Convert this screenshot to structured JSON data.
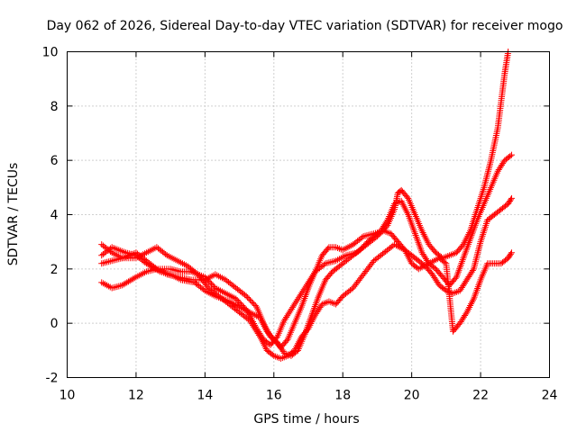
{
  "chart_data": {
    "type": "scatter",
    "title": "Day 062 of 2026, Sidereal Day-to-day VTEC variation (SDTVAR) for receiver mogo",
    "xlabel": "GPS time / hours",
    "ylabel": "SDTVAR / TECUs",
    "xlim": [
      10,
      24
    ],
    "ylim": [
      -2,
      10
    ],
    "xticks": [
      "10",
      "12",
      "14",
      "16",
      "18",
      "20",
      "22",
      "24"
    ],
    "yticks": [
      "-2",
      "0",
      "2",
      "4",
      "6",
      "8",
      "10"
    ],
    "grid": true,
    "marker": "+",
    "color": "#ff0000",
    "series": [
      {
        "name": "track-1",
        "points": [
          [
            11.0,
            2.5
          ],
          [
            11.3,
            2.8
          ],
          [
            11.7,
            2.6
          ],
          [
            12.0,
            2.5
          ],
          [
            12.3,
            2.2
          ],
          [
            12.7,
            1.9
          ],
          [
            13.0,
            1.8
          ],
          [
            13.3,
            1.6
          ],
          [
            13.7,
            1.5
          ],
          [
            14.0,
            1.2
          ],
          [
            14.3,
            1.0
          ],
          [
            14.7,
            0.8
          ],
          [
            15.0,
            0.6
          ],
          [
            15.3,
            0.4
          ],
          [
            15.6,
            0.2
          ],
          [
            15.8,
            -0.3
          ],
          [
            16.0,
            -0.6
          ],
          [
            16.2,
            -0.9
          ],
          [
            16.4,
            -0.6
          ],
          [
            16.6,
            0.0
          ],
          [
            16.8,
            0.6
          ],
          [
            17.0,
            1.3
          ],
          [
            17.2,
            1.9
          ],
          [
            17.4,
            2.5
          ],
          [
            17.6,
            2.8
          ],
          [
            17.8,
            2.8
          ],
          [
            18.0,
            2.7
          ],
          [
            18.3,
            2.9
          ],
          [
            18.6,
            3.2
          ],
          [
            18.9,
            3.3
          ],
          [
            19.2,
            3.4
          ],
          [
            19.4,
            3.3
          ],
          [
            19.6,
            3.0
          ],
          [
            19.8,
            2.7
          ],
          [
            20.0,
            2.5
          ],
          [
            20.2,
            2.3
          ],
          [
            20.4,
            2.1
          ],
          [
            20.6,
            1.8
          ],
          [
            20.8,
            1.4
          ],
          [
            21.0,
            1.2
          ],
          [
            21.2,
            1.1
          ],
          [
            21.4,
            1.2
          ],
          [
            21.6,
            1.6
          ],
          [
            21.8,
            2.0
          ],
          [
            22.0,
            3.0
          ],
          [
            22.2,
            3.8
          ],
          [
            22.4,
            4.0
          ],
          [
            22.6,
            4.2
          ],
          [
            22.8,
            4.4
          ],
          [
            22.9,
            4.6
          ]
        ]
      },
      {
        "name": "track-2",
        "points": [
          [
            11.0,
            1.5
          ],
          [
            11.3,
            1.3
          ],
          [
            11.6,
            1.4
          ],
          [
            12.0,
            1.7
          ],
          [
            12.3,
            1.9
          ],
          [
            12.6,
            2.0
          ],
          [
            13.0,
            2.0
          ],
          [
            13.3,
            1.9
          ],
          [
            13.6,
            1.9
          ],
          [
            14.0,
            1.7
          ],
          [
            14.3,
            1.3
          ],
          [
            14.6,
            1.1
          ],
          [
            14.9,
            0.9
          ],
          [
            15.2,
            0.5
          ],
          [
            15.5,
            -0.2
          ],
          [
            15.7,
            -0.6
          ],
          [
            15.9,
            -0.8
          ],
          [
            16.1,
            -0.5
          ],
          [
            16.3,
            0.1
          ],
          [
            16.6,
            0.7
          ],
          [
            16.9,
            1.3
          ],
          [
            17.2,
            1.9
          ],
          [
            17.5,
            2.2
          ],
          [
            17.8,
            2.3
          ],
          [
            18.1,
            2.5
          ],
          [
            18.4,
            2.6
          ],
          [
            18.7,
            2.9
          ],
          [
            19.0,
            3.2
          ],
          [
            19.3,
            3.6
          ],
          [
            19.5,
            4.2
          ],
          [
            19.6,
            4.8
          ],
          [
            19.7,
            4.9
          ],
          [
            19.9,
            4.6
          ],
          [
            20.1,
            4.0
          ],
          [
            20.3,
            3.4
          ],
          [
            20.5,
            2.9
          ],
          [
            20.7,
            2.6
          ],
          [
            20.9,
            2.4
          ],
          [
            21.1,
            2.5
          ],
          [
            21.3,
            2.6
          ],
          [
            21.5,
            2.9
          ],
          [
            21.7,
            3.4
          ],
          [
            21.9,
            4.2
          ],
          [
            22.1,
            5.0
          ],
          [
            22.3,
            6.0
          ],
          [
            22.5,
            7.2
          ],
          [
            22.6,
            8.2
          ],
          [
            22.7,
            9.2
          ],
          [
            22.8,
            10.0
          ]
        ]
      },
      {
        "name": "track-3",
        "points": [
          [
            11.0,
            2.2
          ],
          [
            11.3,
            2.3
          ],
          [
            11.6,
            2.4
          ],
          [
            12.0,
            2.6
          ],
          [
            12.3,
            2.3
          ],
          [
            12.6,
            2.0
          ],
          [
            12.9,
            1.8
          ],
          [
            13.2,
            1.7
          ],
          [
            13.6,
            1.6
          ],
          [
            14.0,
            1.6
          ],
          [
            14.3,
            1.8
          ],
          [
            14.6,
            1.6
          ],
          [
            14.9,
            1.3
          ],
          [
            15.2,
            1.0
          ],
          [
            15.5,
            0.6
          ],
          [
            15.7,
            0.0
          ],
          [
            15.9,
            -0.5
          ],
          [
            16.1,
            -0.7
          ],
          [
            16.3,
            -1.1
          ],
          [
            16.5,
            -1.2
          ],
          [
            16.7,
            -1.0
          ],
          [
            16.9,
            -0.4
          ],
          [
            17.1,
            0.3
          ],
          [
            17.3,
            1.0
          ],
          [
            17.5,
            1.6
          ],
          [
            17.7,
            1.9
          ],
          [
            17.9,
            2.1
          ],
          [
            18.2,
            2.4
          ],
          [
            18.5,
            2.7
          ],
          [
            18.8,
            3.1
          ],
          [
            19.1,
            3.4
          ],
          [
            19.3,
            3.8
          ],
          [
            19.5,
            4.4
          ],
          [
            19.7,
            4.5
          ],
          [
            19.9,
            4.0
          ],
          [
            20.1,
            3.3
          ],
          [
            20.3,
            2.6
          ],
          [
            20.5,
            2.2
          ],
          [
            20.7,
            2.0
          ],
          [
            20.9,
            1.7
          ],
          [
            21.1,
            1.4
          ],
          [
            21.3,
            1.7
          ],
          [
            21.5,
            2.4
          ],
          [
            21.7,
            3.1
          ],
          [
            21.9,
            3.8
          ],
          [
            22.1,
            4.4
          ],
          [
            22.3,
            5.0
          ],
          [
            22.5,
            5.6
          ],
          [
            22.7,
            6.0
          ],
          [
            22.9,
            6.2
          ]
        ]
      },
      {
        "name": "track-4",
        "points": [
          [
            11.0,
            2.9
          ],
          [
            11.3,
            2.6
          ],
          [
            11.6,
            2.4
          ],
          [
            12.0,
            2.4
          ],
          [
            12.3,
            2.6
          ],
          [
            12.6,
            2.8
          ],
          [
            12.9,
            2.5
          ],
          [
            13.2,
            2.3
          ],
          [
            13.5,
            2.1
          ],
          [
            13.8,
            1.8
          ],
          [
            14.1,
            1.3
          ],
          [
            14.4,
            1.0
          ],
          [
            14.7,
            0.7
          ],
          [
            15.0,
            0.4
          ],
          [
            15.3,
            0.1
          ],
          [
            15.6,
            -0.5
          ],
          [
            15.8,
            -1.0
          ],
          [
            16.0,
            -1.2
          ],
          [
            16.2,
            -1.3
          ],
          [
            16.4,
            -1.2
          ],
          [
            16.6,
            -1.0
          ],
          [
            16.8,
            -0.5
          ],
          [
            17.0,
            -0.2
          ],
          [
            17.2,
            0.3
          ],
          [
            17.4,
            0.7
          ],
          [
            17.6,
            0.8
          ],
          [
            17.8,
            0.7
          ],
          [
            18.0,
            1.0
          ],
          [
            18.3,
            1.3
          ],
          [
            18.6,
            1.8
          ],
          [
            18.9,
            2.3
          ],
          [
            19.2,
            2.6
          ],
          [
            19.5,
            2.9
          ],
          [
            19.8,
            2.7
          ],
          [
            20.0,
            2.2
          ],
          [
            20.2,
            2.0
          ],
          [
            20.5,
            2.2
          ],
          [
            20.8,
            2.4
          ],
          [
            21.0,
            2.2
          ],
          [
            21.2,
            -0.3
          ],
          [
            21.4,
            0.0
          ],
          [
            21.6,
            0.4
          ],
          [
            21.8,
            0.9
          ],
          [
            22.0,
            1.6
          ],
          [
            22.2,
            2.2
          ],
          [
            22.4,
            2.2
          ],
          [
            22.6,
            2.2
          ],
          [
            22.8,
            2.4
          ],
          [
            22.9,
            2.6
          ]
        ]
      }
    ]
  }
}
